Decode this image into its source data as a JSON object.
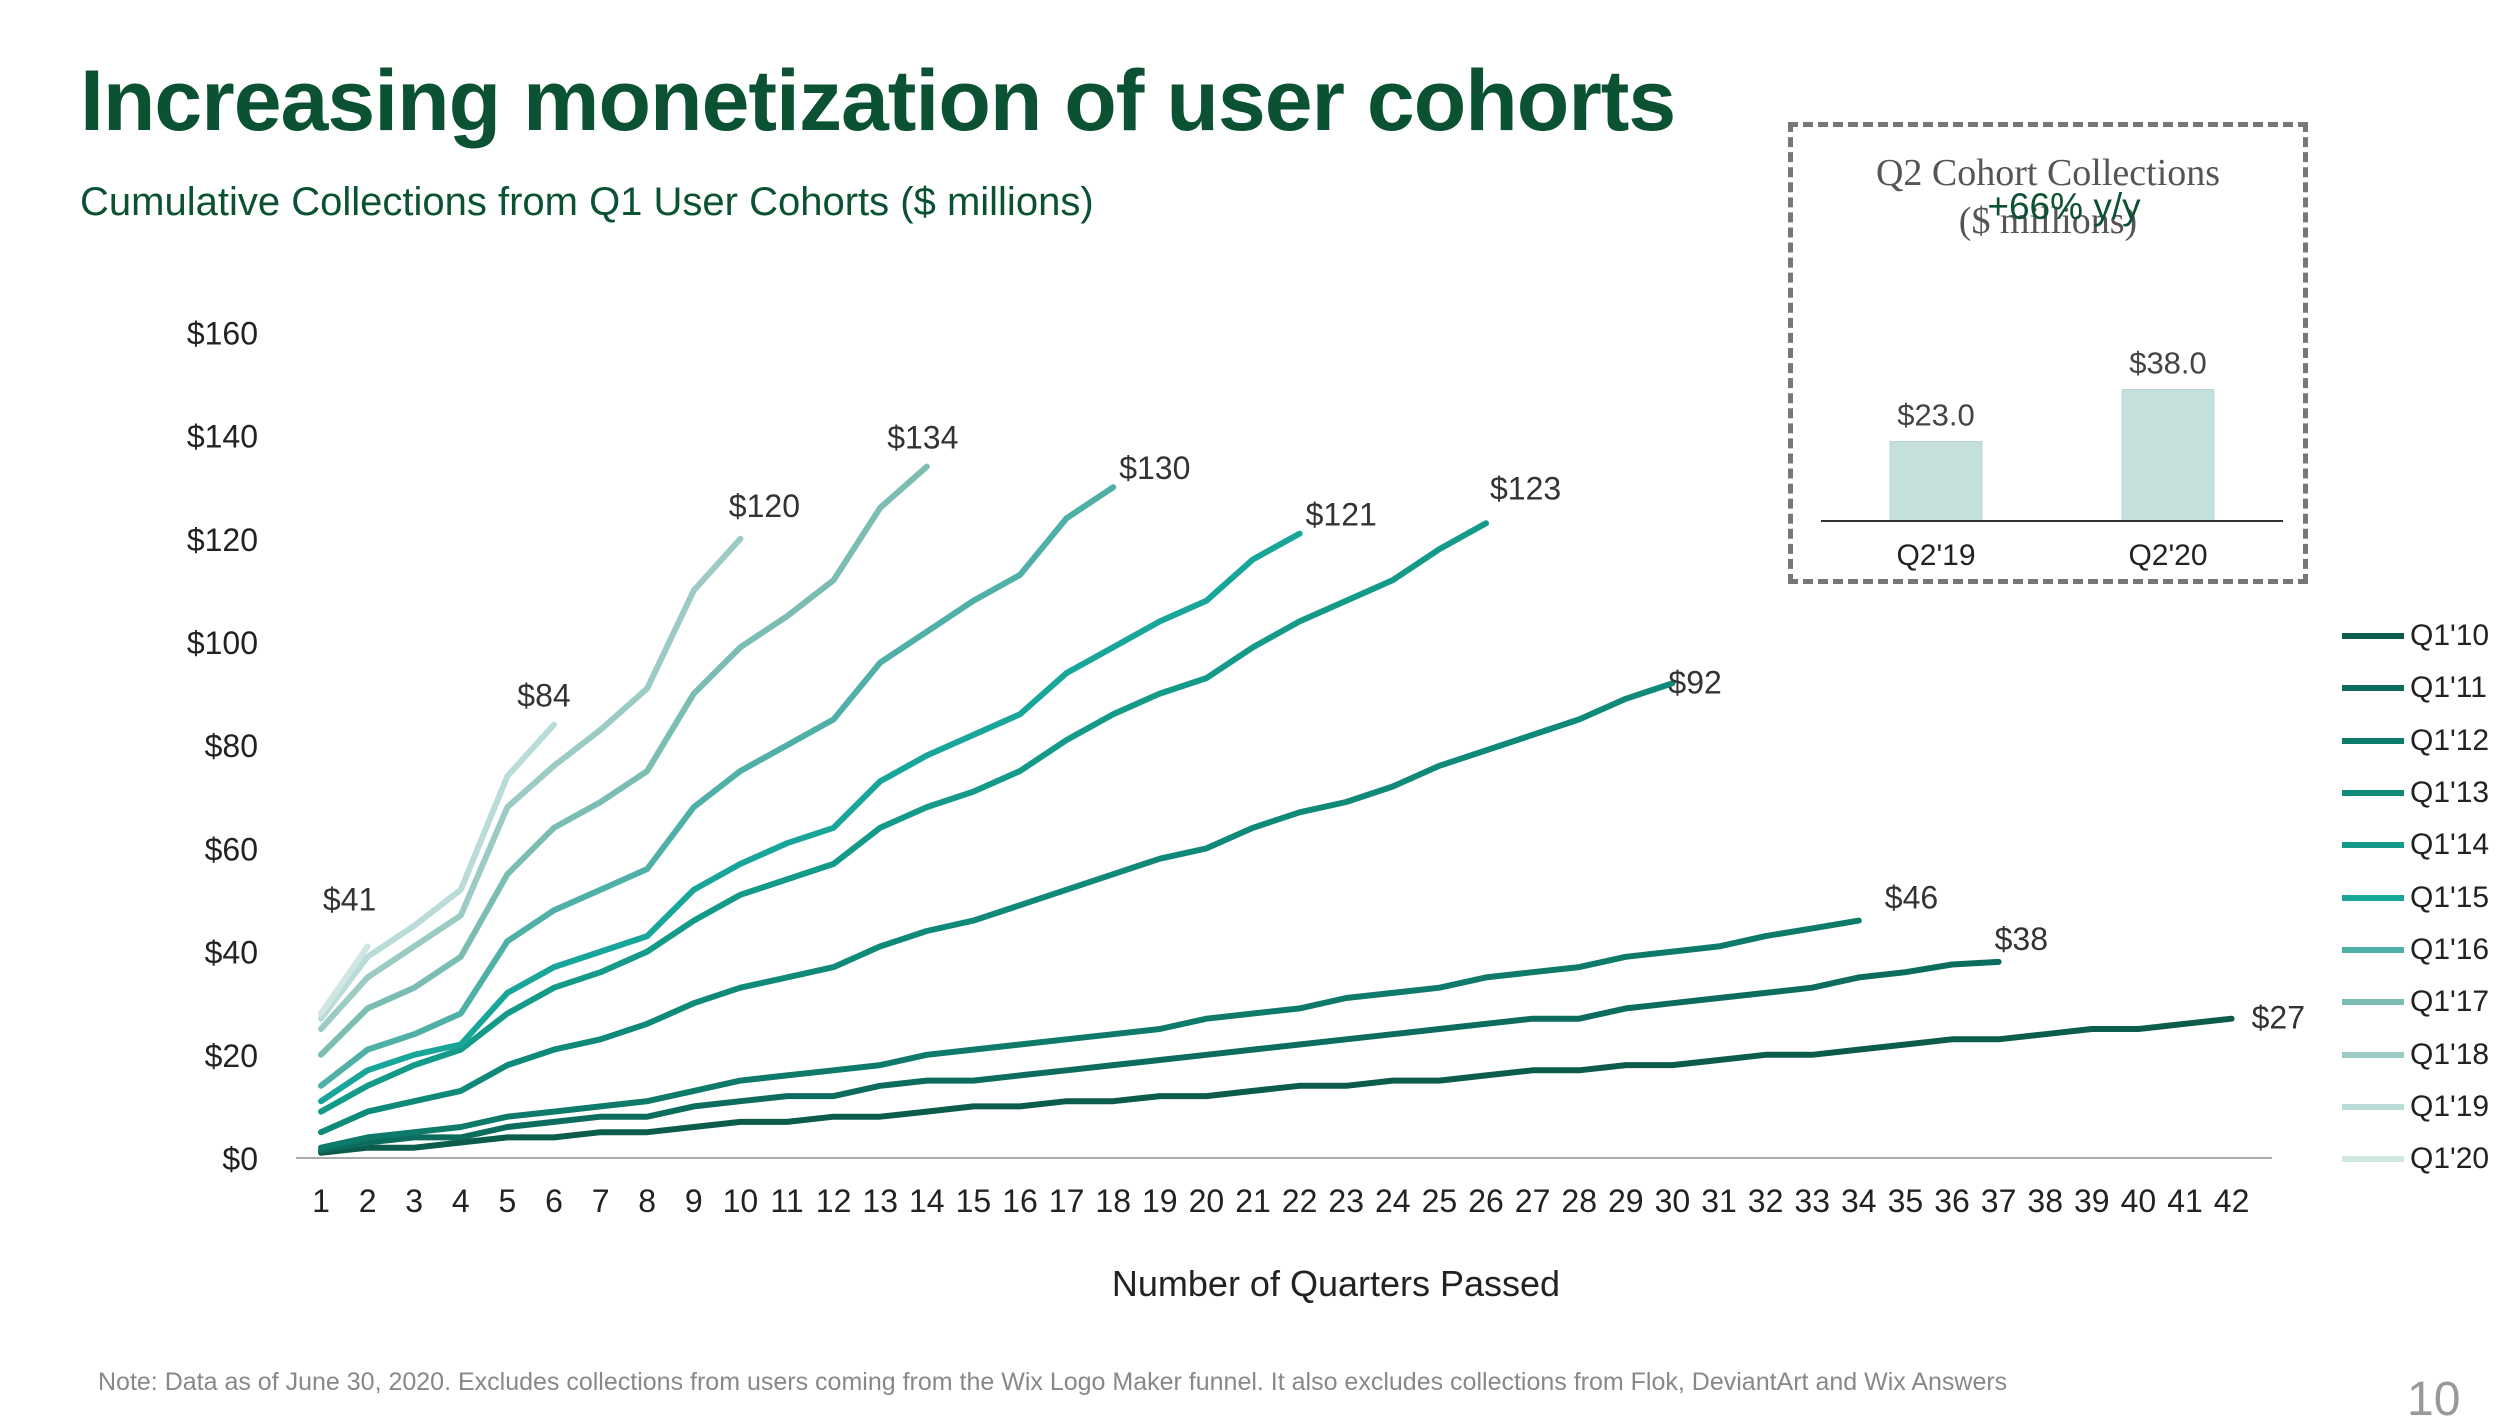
{
  "title": "Increasing monetization of user cohorts",
  "subtitle": "Cumulative Collections from Q1 User Cohorts ($ millions)",
  "footnote": "Note: Data as of June 30, 2020. Excludes collections from users coming from the Wix Logo Maker funnel. It also excludes collections from Flok, DeviantArt and Wix Answers",
  "page_number": "10",
  "inset": {
    "title_line1": "Q2 Cohort Collections",
    "title_line2": "($ millions)"
  },
  "chart_data": [
    {
      "type": "line",
      "title": "Cumulative Collections from Q1 User Cohorts ($ millions)",
      "xlabel": "Number of Quarters Passed",
      "ylabel": "",
      "ylim": [
        0,
        160
      ],
      "xlim": [
        1,
        42
      ],
      "ytick_labels": [
        "$0",
        "$20",
        "$40",
        "$60",
        "$80",
        "$100",
        "$120",
        "$140",
        "$160"
      ],
      "grid": false,
      "legend_position": "right",
      "series": [
        {
          "name": "Q1'10",
          "color": "#0b5c4b",
          "end_label": "$27",
          "values": [
            1,
            2,
            2,
            3,
            4,
            4,
            5,
            5,
            6,
            7,
            7,
            8,
            8,
            9,
            10,
            10,
            11,
            11,
            12,
            12,
            13,
            14,
            14,
            15,
            15,
            16,
            17,
            17,
            18,
            18,
            19,
            20,
            20,
            21,
            22,
            23,
            23,
            24,
            25,
            25,
            26,
            27
          ]
        },
        {
          "name": "Q1'11",
          "color": "#0c6d5e",
          "end_label": "$38",
          "values": [
            1.5,
            3,
            4,
            4,
            6,
            7,
            8,
            8,
            10,
            11,
            12,
            12,
            14,
            15,
            15,
            16,
            17,
            18,
            19,
            20,
            21,
            22,
            23,
            24,
            25,
            26,
            27,
            27,
            29,
            30,
            31,
            32,
            33,
            35,
            36,
            37.5,
            38
          ]
        },
        {
          "name": "Q1'12",
          "color": "#0e7a6a",
          "end_label": "$46",
          "values": [
            2,
            4,
            5,
            6,
            8,
            9,
            10,
            11,
            13,
            15,
            16,
            17,
            18,
            20,
            21,
            22,
            23,
            24,
            25,
            27,
            28,
            29,
            31,
            32,
            33,
            35,
            36,
            37,
            39,
            40,
            41,
            43,
            44.5,
            46
          ]
        },
        {
          "name": "Q1'13",
          "color": "#108a78",
          "end_label": "$92",
          "values": [
            5,
            9,
            11,
            13,
            18,
            21,
            23,
            26,
            30,
            33,
            35,
            37,
            41,
            44,
            46,
            49,
            52,
            55,
            58,
            60,
            64,
            67,
            69,
            72,
            76,
            79,
            82,
            85,
            89,
            92
          ]
        },
        {
          "name": "Q1'14",
          "color": "#139a88",
          "end_label": "$123",
          "values": [
            9,
            14,
            18,
            21,
            28,
            33,
            36,
            40,
            46,
            51,
            54,
            57,
            64,
            68,
            71,
            75,
            81,
            86,
            90,
            93,
            99,
            104,
            108,
            112,
            118,
            123
          ]
        },
        {
          "name": "Q1'15",
          "color": "#18a69a",
          "end_label": "$121",
          "values": [
            11,
            17,
            20,
            22,
            32,
            37,
            40,
            43,
            52,
            57,
            61,
            64,
            73,
            78,
            82,
            86,
            94,
            99,
            104,
            108,
            116,
            121
          ]
        },
        {
          "name": "Q1'16",
          "color": "#4eb0a6",
          "end_label": "$130",
          "values": [
            14,
            21,
            24,
            28,
            42,
            48,
            52,
            56,
            68,
            75,
            80,
            85,
            96,
            102,
            108,
            113,
            124,
            130
          ]
        },
        {
          "name": "Q1'17",
          "color": "#7bbcb3",
          "end_label": "$134",
          "values": [
            20,
            29,
            33,
            39,
            55,
            64,
            69,
            75,
            90,
            99,
            105,
            112,
            126,
            134
          ]
        },
        {
          "name": "Q1'18",
          "color": "#9ccac4",
          "end_label": "$120",
          "values": [
            25,
            35,
            41,
            47,
            68,
            76,
            83,
            91,
            110,
            120
          ]
        },
        {
          "name": "Q1'19",
          "color": "#b9dcd8",
          "end_label": "$84",
          "values": [
            27,
            39,
            45,
            52,
            74,
            84
          ]
        },
        {
          "name": "Q1'20",
          "color": "#cfe6e3",
          "end_label": "$41",
          "values": [
            28,
            41
          ]
        }
      ]
    },
    {
      "type": "bar",
      "title": "Q2 Cohort Collections ($ millions)",
      "categories": [
        "Q2'19",
        "Q2'20"
      ],
      "values": [
        23.0,
        38.0
      ],
      "value_labels": [
        "$23.0",
        "$38.0"
      ],
      "annotation": "+66% y/y",
      "ylim": [
        0,
        45
      ],
      "color": "#c5e0dc"
    }
  ]
}
